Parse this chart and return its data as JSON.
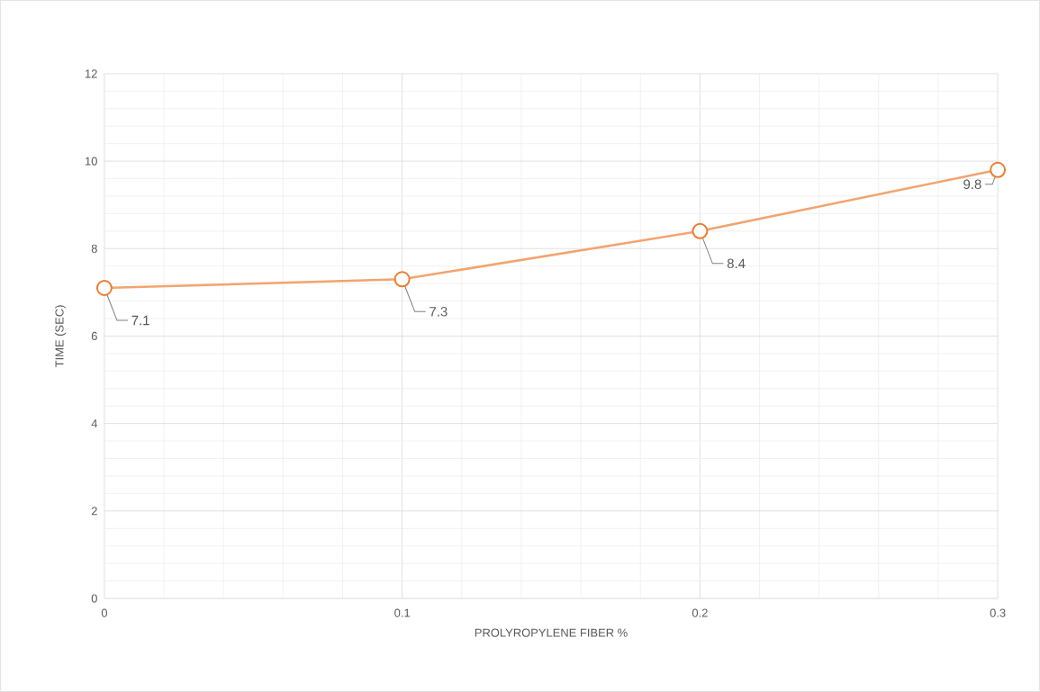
{
  "chart_data": {
    "type": "line",
    "xlabel": "PROLYROPYLENE FIBER %",
    "ylabel": "TIME (SEC)",
    "x": [
      0,
      0.1,
      0.2,
      0.3
    ],
    "series": [
      {
        "color": "#ed7d31",
        "values": [
          7.1,
          7.3,
          8.4,
          9.8
        ]
      }
    ],
    "xlim": [
      0,
      0.3
    ],
    "xticks": [
      0,
      0.1,
      0.2,
      0.3
    ],
    "ylim": [
      0,
      12
    ],
    "yticks": [
      0,
      2,
      4,
      6,
      8,
      10,
      12
    ],
    "grid": true,
    "marker": "circle",
    "line_style": "solid",
    "data_labels": true
  }
}
